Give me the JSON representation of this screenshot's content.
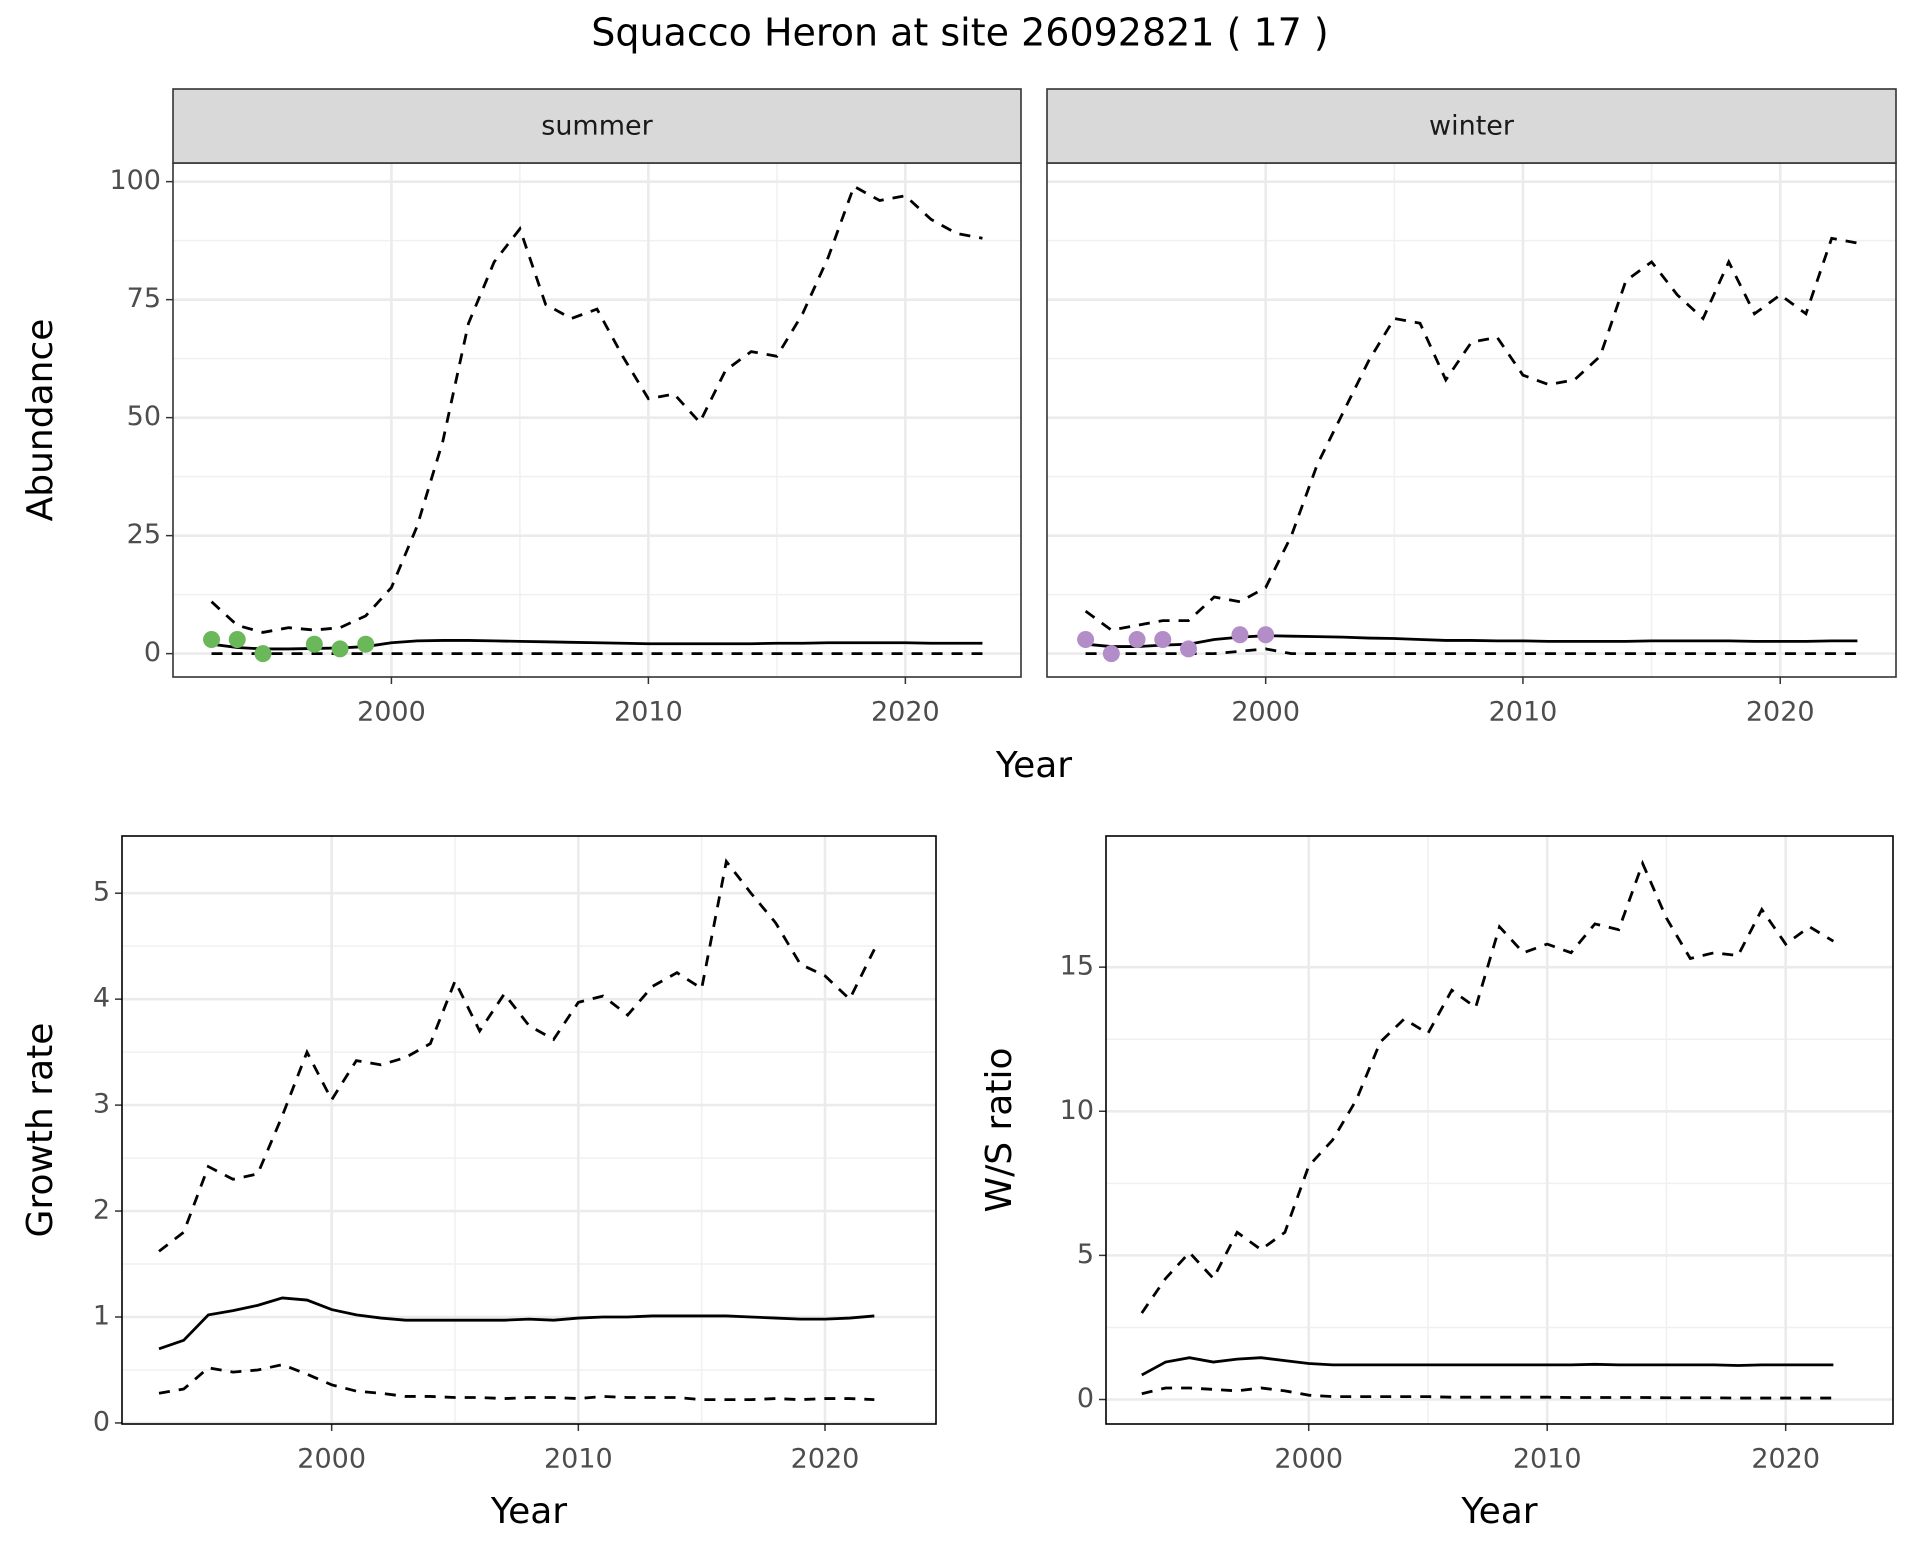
{
  "title": "Squacco Heron at site 26092821 ( 17 )",
  "chart_data": [
    {
      "type": "line",
      "strip": "summer",
      "xlabel": "Year",
      "ylabel": "Abundance",
      "x": [
        1993,
        1994,
        1995,
        1996,
        1997,
        1998,
        1999,
        2000,
        2001,
        2002,
        2003,
        2004,
        2005,
        2006,
        2007,
        2008,
        2009,
        2010,
        2011,
        2012,
        2013,
        2014,
        2015,
        2016,
        2017,
        2018,
        2019,
        2020,
        2021,
        2022,
        2023
      ],
      "xlim": [
        1991.5,
        2024.5
      ],
      "xticks": [
        2000,
        2010,
        2020
      ],
      "ylim": [
        -4.95,
        103.95
      ],
      "yticks": [
        0,
        25,
        50,
        75,
        100
      ],
      "grid": true,
      "series": [
        {
          "color": "#000000",
          "linestyle": "dashed",
          "values": [
            11,
            6,
            4.5,
            5.5,
            5,
            5.5,
            8,
            14,
            27,
            45,
            70,
            83,
            90,
            74,
            71,
            73,
            63,
            54,
            55,
            49,
            60,
            64,
            63,
            72,
            84,
            99,
            96,
            97,
            92,
            89,
            88
          ]
        },
        {
          "color": "#000000",
          "linestyle": "solid",
          "values": [
            2,
            1.3,
            1,
            1,
            1.1,
            1.2,
            1.5,
            2.3,
            2.7,
            2.8,
            2.8,
            2.7,
            2.6,
            2.5,
            2.4,
            2.3,
            2.2,
            2.1,
            2.1,
            2.1,
            2.1,
            2.1,
            2.2,
            2.2,
            2.3,
            2.3,
            2.3,
            2.3,
            2.2,
            2.2,
            2.2
          ]
        },
        {
          "color": "#000000",
          "linestyle": "dashed",
          "values": [
            0,
            0,
            0,
            0,
            0,
            0,
            0,
            0,
            0,
            0,
            0,
            0,
            0,
            0,
            0,
            0,
            0,
            0,
            0,
            0,
            0,
            0,
            0,
            0,
            0,
            0,
            0,
            0,
            0,
            0,
            0
          ]
        }
      ],
      "points": {
        "color": "#6ab85a",
        "x": [
          1993,
          1994,
          1995,
          1997,
          1998,
          1999
        ],
        "values": [
          3,
          3,
          0,
          2,
          1,
          2
        ]
      }
    },
    {
      "type": "line",
      "strip": "winter",
      "x": [
        1993,
        1994,
        1995,
        1996,
        1997,
        1998,
        1999,
        2000,
        2001,
        2002,
        2003,
        2004,
        2005,
        2006,
        2007,
        2008,
        2009,
        2010,
        2011,
        2012,
        2013,
        2014,
        2015,
        2016,
        2017,
        2018,
        2019,
        2020,
        2021,
        2022,
        2023
      ],
      "xlim": [
        1991.5,
        2024.5
      ],
      "xticks": [
        2000,
        2010,
        2020
      ],
      "grid": true,
      "series": [
        {
          "color": "#000000",
          "linestyle": "dashed",
          "values": [
            9,
            5,
            6,
            7,
            7,
            12,
            11,
            14,
            25,
            40,
            51,
            62,
            71,
            70,
            58,
            66,
            67,
            59,
            57,
            58,
            63,
            79,
            83,
            76,
            71,
            83,
            72,
            76,
            72,
            88,
            87
          ]
        },
        {
          "color": "#000000",
          "linestyle": "solid",
          "values": [
            2,
            1.5,
            1.5,
            1.8,
            2,
            3,
            3.5,
            3.8,
            3.7,
            3.6,
            3.5,
            3.3,
            3.2,
            3,
            2.8,
            2.8,
            2.7,
            2.7,
            2.6,
            2.6,
            2.6,
            2.6,
            2.7,
            2.7,
            2.7,
            2.7,
            2.6,
            2.6,
            2.6,
            2.7,
            2.7
          ]
        },
        {
          "color": "#000000",
          "linestyle": "dashed",
          "values": [
            0,
            0,
            0,
            0,
            0,
            0,
            0.5,
            1,
            0,
            0,
            0,
            0,
            0,
            0,
            0,
            0,
            0,
            0,
            0,
            0,
            0,
            0,
            0,
            0,
            0,
            0,
            0,
            0,
            0,
            0,
            0
          ]
        }
      ],
      "points": {
        "color": "#b28dc8",
        "x": [
          1993,
          1994,
          1995,
          1996,
          1997,
          1999,
          2000
        ],
        "values": [
          3,
          0,
          3,
          3,
          1,
          4,
          4
        ]
      }
    },
    {
      "type": "line",
      "xlabel": "Year",
      "ylabel": "Growth rate",
      "x": [
        1993,
        1994,
        1995,
        1996,
        1997,
        1998,
        1999,
        2000,
        2001,
        2002,
        2003,
        2004,
        2005,
        2006,
        2007,
        2008,
        2009,
        2010,
        2011,
        2012,
        2013,
        2014,
        2015,
        2016,
        2017,
        2018,
        2019,
        2020,
        2021,
        2022
      ],
      "xlim": [
        1991.5,
        2024.5
      ],
      "xticks": [
        2000,
        2010,
        2020
      ],
      "ylim": [
        -0.01,
        5.54
      ],
      "yticks": [
        0,
        1,
        2,
        3,
        4,
        5
      ],
      "grid": true,
      "series": [
        {
          "color": "#000000",
          "linestyle": "dashed",
          "values": [
            1.62,
            1.8,
            2.42,
            2.3,
            2.35,
            2.9,
            3.5,
            3.05,
            3.42,
            3.38,
            3.45,
            3.58,
            4.17,
            3.7,
            4.05,
            3.75,
            3.62,
            3.97,
            4.03,
            3.85,
            4.12,
            4.25,
            4.1,
            5.3,
            5.0,
            4.72,
            4.33,
            4.22,
            4.0,
            4.47
          ]
        },
        {
          "color": "#000000",
          "linestyle": "solid",
          "values": [
            0.7,
            0.78,
            1.02,
            1.06,
            1.11,
            1.18,
            1.16,
            1.07,
            1.02,
            0.99,
            0.97,
            0.97,
            0.97,
            0.97,
            0.97,
            0.98,
            0.97,
            0.99,
            1.0,
            1.0,
            1.01,
            1.01,
            1.01,
            1.01,
            1.0,
            0.99,
            0.98,
            0.98,
            0.99,
            1.01
          ]
        },
        {
          "color": "#000000",
          "linestyle": "dashed",
          "values": [
            0.28,
            0.32,
            0.52,
            0.48,
            0.5,
            0.55,
            0.46,
            0.36,
            0.3,
            0.28,
            0.25,
            0.25,
            0.24,
            0.24,
            0.23,
            0.24,
            0.24,
            0.23,
            0.25,
            0.24,
            0.24,
            0.24,
            0.22,
            0.22,
            0.22,
            0.23,
            0.22,
            0.23,
            0.23,
            0.22
          ]
        }
      ]
    },
    {
      "type": "line",
      "xlabel": "Year",
      "ylabel": "W/S ratio",
      "x": [
        1993,
        1994,
        1995,
        1996,
        1997,
        1998,
        1999,
        2000,
        2001,
        2002,
        2003,
        2004,
        2005,
        2006,
        2007,
        2008,
        2009,
        2010,
        2011,
        2012,
        2013,
        2014,
        2015,
        2016,
        2017,
        2018,
        2019,
        2020,
        2021,
        2022
      ],
      "xlim": [
        1991.5,
        2024.5
      ],
      "xticks": [
        2000,
        2010,
        2020
      ],
      "ylim": [
        -0.85,
        19.55
      ],
      "yticks": [
        0,
        5,
        10,
        15
      ],
      "grid": true,
      "series": [
        {
          "color": "#000000",
          "linestyle": "dashed",
          "values": [
            3.0,
            4.2,
            5.1,
            4.2,
            5.8,
            5.2,
            5.8,
            8.1,
            9.0,
            10.4,
            12.4,
            13.2,
            12.7,
            14.2,
            13.6,
            16.4,
            15.5,
            15.8,
            15.5,
            16.5,
            16.3,
            18.6,
            16.7,
            15.3,
            15.5,
            15.4,
            17.0,
            15.8,
            16.4,
            15.9
          ]
        },
        {
          "color": "#000000",
          "linestyle": "solid",
          "values": [
            0.85,
            1.3,
            1.45,
            1.3,
            1.4,
            1.45,
            1.35,
            1.25,
            1.2,
            1.2,
            1.2,
            1.2,
            1.2,
            1.2,
            1.2,
            1.2,
            1.2,
            1.2,
            1.2,
            1.22,
            1.2,
            1.2,
            1.2,
            1.2,
            1.2,
            1.18,
            1.2,
            1.2,
            1.2,
            1.2
          ]
        },
        {
          "color": "#000000",
          "linestyle": "dashed",
          "values": [
            0.2,
            0.4,
            0.4,
            0.35,
            0.3,
            0.4,
            0.3,
            0.15,
            0.1,
            0.1,
            0.1,
            0.1,
            0.1,
            0.08,
            0.08,
            0.08,
            0.08,
            0.08,
            0.07,
            0.07,
            0.07,
            0.07,
            0.06,
            0.06,
            0.06,
            0.05,
            0.05,
            0.05,
            0.05,
            0.05
          ]
        }
      ]
    }
  ]
}
